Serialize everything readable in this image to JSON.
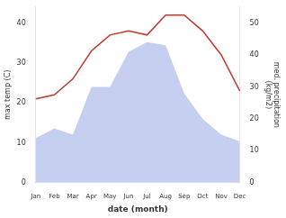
{
  "chart_data": {
    "type": "line",
    "categories": [
      "Jan",
      "Feb",
      "Mar",
      "Apr",
      "May",
      "Jun",
      "Jul",
      "Aug",
      "Sep",
      "Oct",
      "Nov",
      "Dec"
    ],
    "series": [
      {
        "type": "line",
        "color": "#c0392b",
        "values": [
          21,
          22,
          26,
          33,
          37,
          38,
          37,
          42,
          42,
          38,
          32,
          23
        ]
      },
      {
        "type": "area",
        "color": "#c5d0f0",
        "axis": "y2",
        "values": [
          14,
          17,
          15,
          30,
          30,
          41,
          44,
          43,
          28,
          20,
          15,
          13
        ]
      }
    ],
    "xlabel": "date (month)",
    "ylabel": "max temp (C)",
    "y2label": "med. precipitation\n(kg/m2)",
    "ylim": [
      0,
      44
    ],
    "yticks": [
      0,
      10,
      20,
      30,
      40
    ],
    "y2lim": [
      0,
      55
    ],
    "y2ticks": [
      0,
      10,
      20,
      30,
      40,
      50
    ],
    "grid": false
  }
}
